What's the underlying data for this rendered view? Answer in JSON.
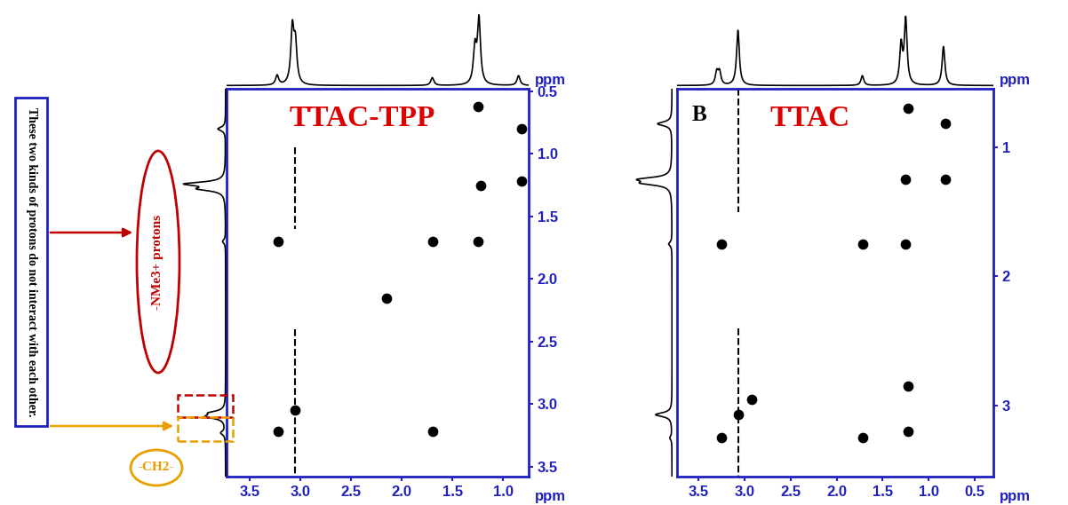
{
  "chart_data": [
    {
      "type": "scatter",
      "title": "TTAC-TPP",
      "x_label": "ppm",
      "y_label": "ppm",
      "xlim": [
        3.73,
        0.75
      ],
      "xticks": [
        3.5,
        3.0,
        2.5,
        2.0,
        1.5,
        1.0
      ],
      "ylim": [
        3.58,
        0.48
      ],
      "yticks": [
        0.5,
        1.0,
        1.5,
        2.0,
        2.5,
        3.0,
        3.5
      ],
      "color": "#000000",
      "marker": "circle",
      "grid": false,
      "x": [
        0.82,
        1.25,
        0.82,
        1.22,
        3.22,
        1.7,
        1.25,
        3.05,
        3.22,
        1.7,
        2.15
      ],
      "values": [
        0.8,
        0.62,
        1.22,
        1.25,
        1.7,
        1.7,
        1.7,
        3.05,
        3.22,
        3.22,
        2.15
      ],
      "streaks": [
        {
          "x": 3.05,
          "y": [
            0.95,
            1.6
          ]
        },
        {
          "x": 3.05,
          "y": [
            2.4,
            3.58
          ]
        }
      ],
      "projection_top": {
        "x": [
          3.23,
          3.08,
          3.05,
          1.7,
          1.28,
          1.24,
          0.85
        ],
        "heights": [
          0.15,
          0.85,
          0.6,
          0.12,
          0.55,
          1.0,
          0.15
        ]
      },
      "projection_left": {
        "y": [
          3.23,
          3.1,
          3.07,
          1.7,
          1.28,
          1.24,
          0.8
        ],
        "heights": [
          0.12,
          0.45,
          0.35,
          0.08,
          0.6,
          1.0,
          0.2
        ]
      },
      "annotations": {
        "text": "These two kinds of protons do not interact with each other.",
        "labels": [
          {
            "text": "-NMe3+ protons",
            "color": "#c00000"
          },
          {
            "text": "-CH2-",
            "color": "#e8a000"
          }
        ]
      }
    },
    {
      "type": "scatter",
      "title": "TTAC",
      "panel_label": "B",
      "x_label": "ppm",
      "y_label": "ppm",
      "xlim": [
        3.73,
        0.3
      ],
      "xticks": [
        3.5,
        3.0,
        2.5,
        2.0,
        1.5,
        1.0,
        0.5
      ],
      "ylim": [
        3.55,
        0.55
      ],
      "yticks": [
        1,
        2,
        3
      ],
      "color": "#000000",
      "marker": "circle",
      "grid": false,
      "x": [
        0.82,
        0.82,
        1.25,
        1.22,
        3.25,
        1.72,
        1.25,
        3.25,
        1.72,
        1.22,
        1.22,
        2.92,
        3.07
      ],
      "values": [
        0.82,
        1.25,
        1.25,
        0.7,
        1.75,
        1.75,
        1.75,
        3.25,
        3.25,
        2.85,
        3.2,
        2.95,
        3.07
      ],
      "streaks": [
        {
          "x": 3.07,
          "y": [
            0.55,
            1.5
          ]
        },
        {
          "x": 3.07,
          "y": [
            2.4,
            3.55
          ]
        }
      ],
      "projection_top": {
        "x": [
          3.3,
          3.27,
          3.07,
          1.72,
          1.3,
          1.25,
          0.84
        ],
        "heights": [
          0.2,
          0.2,
          0.85,
          0.15,
          0.6,
          1.0,
          0.6
        ]
      },
      "projection_left": {
        "y": [
          3.25,
          3.07,
          1.75,
          1.28,
          1.25,
          0.82
        ],
        "heights": [
          0.05,
          0.4,
          0.08,
          0.6,
          0.7,
          0.35
        ]
      }
    }
  ]
}
